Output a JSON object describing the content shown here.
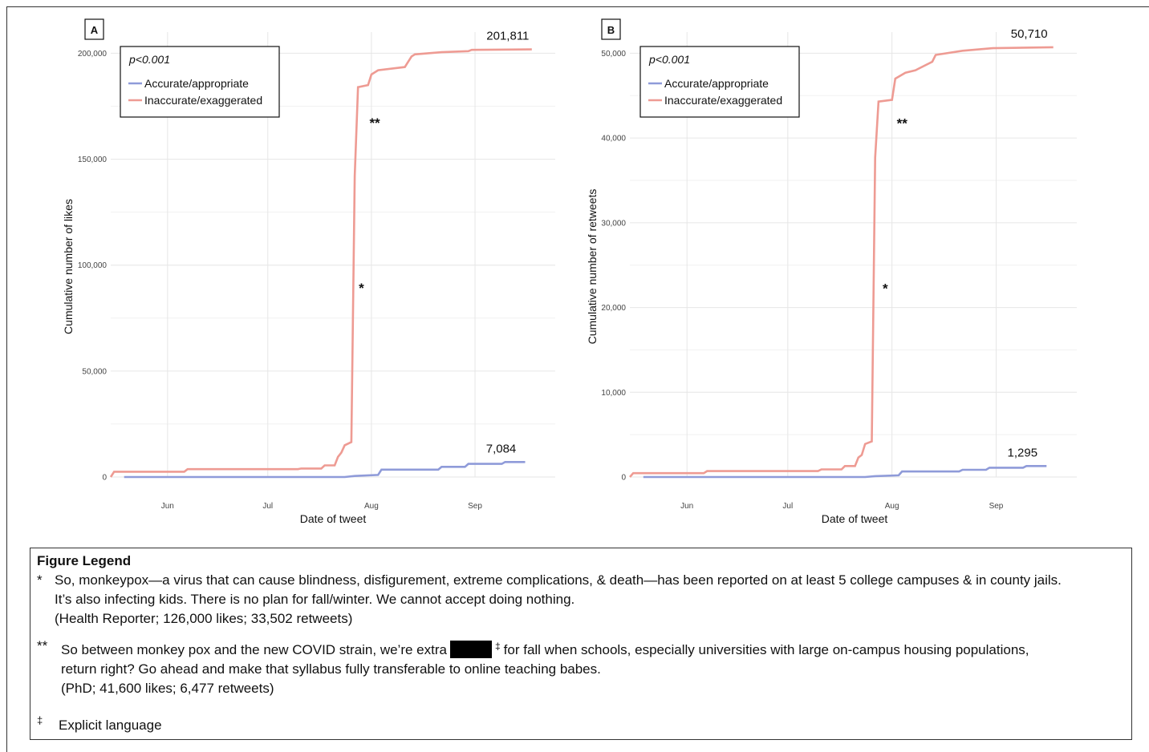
{
  "colors": {
    "accurate": "#8f9bd9",
    "inaccurate": "#ee9b93",
    "grid": "#e6e6e6"
  },
  "chart_data": [
    {
      "type": "line",
      "panel": "A",
      "title": "",
      "xlabel": "Date of tweet",
      "ylabel": "Cumulative number of likes",
      "xlim": [
        "2022-05-15",
        "2022-09-25"
      ],
      "ylim": [
        0,
        210000
      ],
      "x_ticks": [
        {
          "date": "2022-06-01",
          "label": "Jun"
        },
        {
          "date": "2022-07-01",
          "label": "Jul"
        },
        {
          "date": "2022-08-01",
          "label": "Aug"
        },
        {
          "date": "2022-09-01",
          "label": "Sep"
        }
      ],
      "y_ticks": [
        {
          "value": 0,
          "label": "0"
        },
        {
          "value": 50000,
          "label": "50,000"
        },
        {
          "value": 100000,
          "label": "100,000"
        },
        {
          "value": 150000,
          "label": "150,000"
        },
        {
          "value": 200000,
          "label": "200,000"
        }
      ],
      "grid": true,
      "legend_position": "top-left",
      "pvalue": "p<0.001",
      "series": [
        {
          "name": "Accurate/appropriate",
          "color_key": "accurate",
          "end_label": "7,084",
          "points": [
            [
              "2022-05-19",
              0
            ],
            [
              "2022-07-24",
              0
            ],
            [
              "2022-07-27",
              500
            ],
            [
              "2022-08-03",
              1000
            ],
            [
              "2022-08-04",
              3500
            ],
            [
              "2022-08-21",
              3500
            ],
            [
              "2022-08-22",
              4800
            ],
            [
              "2022-08-29",
              4800
            ],
            [
              "2022-08-30",
              6200
            ],
            [
              "2022-09-09",
              6200
            ],
            [
              "2022-09-10",
              7084
            ],
            [
              "2022-09-16",
              7084
            ]
          ]
        },
        {
          "name": "Inaccurate/exaggerated",
          "color_key": "inaccurate",
          "end_label": "201,811",
          "points": [
            [
              "2022-05-15",
              0
            ],
            [
              "2022-05-16",
              2500
            ],
            [
              "2022-06-06",
              2500
            ],
            [
              "2022-06-07",
              3700
            ],
            [
              "2022-07-10",
              3700
            ],
            [
              "2022-07-11",
              4000
            ],
            [
              "2022-07-17",
              4000
            ],
            [
              "2022-07-18",
              5500
            ],
            [
              "2022-07-21",
              5500
            ],
            [
              "2022-07-22",
              9500
            ],
            [
              "2022-07-23",
              11500
            ],
            [
              "2022-07-24",
              15000
            ],
            [
              "2022-07-26",
              16500
            ],
            [
              "2022-07-27",
              142000
            ],
            [
              "2022-07-28",
              184000
            ],
            [
              "2022-07-31",
              185000
            ],
            [
              "2022-08-01",
              190000
            ],
            [
              "2022-08-03",
              192000
            ],
            [
              "2022-08-11",
              193500
            ],
            [
              "2022-08-13",
              198500
            ],
            [
              "2022-08-14",
              199500
            ],
            [
              "2022-08-22",
              200500
            ],
            [
              "2022-08-30",
              201000
            ],
            [
              "2022-08-31",
              201600
            ],
            [
              "2022-09-18",
              201811
            ]
          ]
        }
      ],
      "annotations": [
        {
          "text": "**",
          "x": "2022-08-02",
          "y": 165000
        },
        {
          "text": "*",
          "x": "2022-07-29",
          "y": 87000
        }
      ]
    },
    {
      "type": "line",
      "panel": "B",
      "title": "",
      "xlabel": "Date of tweet",
      "ylabel": "Cumulative number of retweets",
      "xlim": [
        "2022-05-15",
        "2022-09-25"
      ],
      "ylim": [
        0,
        52500
      ],
      "x_ticks": [
        {
          "date": "2022-06-01",
          "label": "Jun"
        },
        {
          "date": "2022-07-01",
          "label": "Jul"
        },
        {
          "date": "2022-08-01",
          "label": "Aug"
        },
        {
          "date": "2022-09-01",
          "label": "Sep"
        }
      ],
      "y_ticks": [
        {
          "value": 0,
          "label": "0"
        },
        {
          "value": 10000,
          "label": "10,000"
        },
        {
          "value": 20000,
          "label": "20,000"
        },
        {
          "value": 30000,
          "label": "30,000"
        },
        {
          "value": 40000,
          "label": "40,000"
        },
        {
          "value": 50000,
          "label": "50,000"
        }
      ],
      "grid": true,
      "legend_position": "top-left",
      "pvalue": "p<0.001",
      "series": [
        {
          "name": "Accurate/appropriate",
          "color_key": "accurate",
          "end_label": "1,295",
          "points": [
            [
              "2022-05-19",
              0
            ],
            [
              "2022-07-24",
              0
            ],
            [
              "2022-07-27",
              100
            ],
            [
              "2022-08-03",
              200
            ],
            [
              "2022-08-04",
              650
            ],
            [
              "2022-08-21",
              650
            ],
            [
              "2022-08-22",
              850
            ],
            [
              "2022-08-29",
              850
            ],
            [
              "2022-08-30",
              1100
            ],
            [
              "2022-09-09",
              1100
            ],
            [
              "2022-09-10",
              1295
            ],
            [
              "2022-09-16",
              1295
            ]
          ]
        },
        {
          "name": "Inaccurate/exaggerated",
          "color_key": "inaccurate",
          "end_label": "50,710",
          "points": [
            [
              "2022-05-15",
              0
            ],
            [
              "2022-05-16",
              450
            ],
            [
              "2022-06-06",
              450
            ],
            [
              "2022-06-07",
              700
            ],
            [
              "2022-07-10",
              700
            ],
            [
              "2022-07-11",
              900
            ],
            [
              "2022-07-17",
              900
            ],
            [
              "2022-07-18",
              1300
            ],
            [
              "2022-07-21",
              1300
            ],
            [
              "2022-07-22",
              2300
            ],
            [
              "2022-07-23",
              2600
            ],
            [
              "2022-07-24",
              3900
            ],
            [
              "2022-07-26",
              4200
            ],
            [
              "2022-07-27",
              37700
            ],
            [
              "2022-07-28",
              44300
            ],
            [
              "2022-08-01",
              44500
            ],
            [
              "2022-08-02",
              47000
            ],
            [
              "2022-08-05",
              47700
            ],
            [
              "2022-08-08",
              48000
            ],
            [
              "2022-08-13",
              49000
            ],
            [
              "2022-08-14",
              49800
            ],
            [
              "2022-08-22",
              50300
            ],
            [
              "2022-08-31",
              50600
            ],
            [
              "2022-09-18",
              50710
            ]
          ]
        }
      ],
      "annotations": [
        {
          "text": "**",
          "x": "2022-08-04",
          "y": 41200
        },
        {
          "text": "*",
          "x": "2022-07-30",
          "y": 21700
        }
      ]
    }
  ],
  "figure_legend": {
    "title": "Figure Legend",
    "note1": {
      "marker": "*",
      "line1": "So, monkeypox—a virus that can cause blindness, disfigurement, extreme complications, & death—has been reported on at least 5 college campuses & in county jails.",
      "line2": "It’s also infecting kids. There is no plan for fall/winter. We cannot accept doing nothing.",
      "line3": "(Health Reporter; 126,000 likes; 33,502 retweets)"
    },
    "note2": {
      "marker": "**",
      "line1a": "So between monkey pox and the new COVID strain, we’re extra",
      "line1b": "for fall when schools, especially universities with large on-campus housing populations,",
      "line2": "return right? Go ahead and make that syllabus fully transferable to online teaching babes.",
      "line3": "(PhD; 41,600 likes; 6,477 retweets)"
    },
    "dagger": "‡",
    "note3": {
      "marker": "‡",
      "text": "Explicit language"
    }
  }
}
